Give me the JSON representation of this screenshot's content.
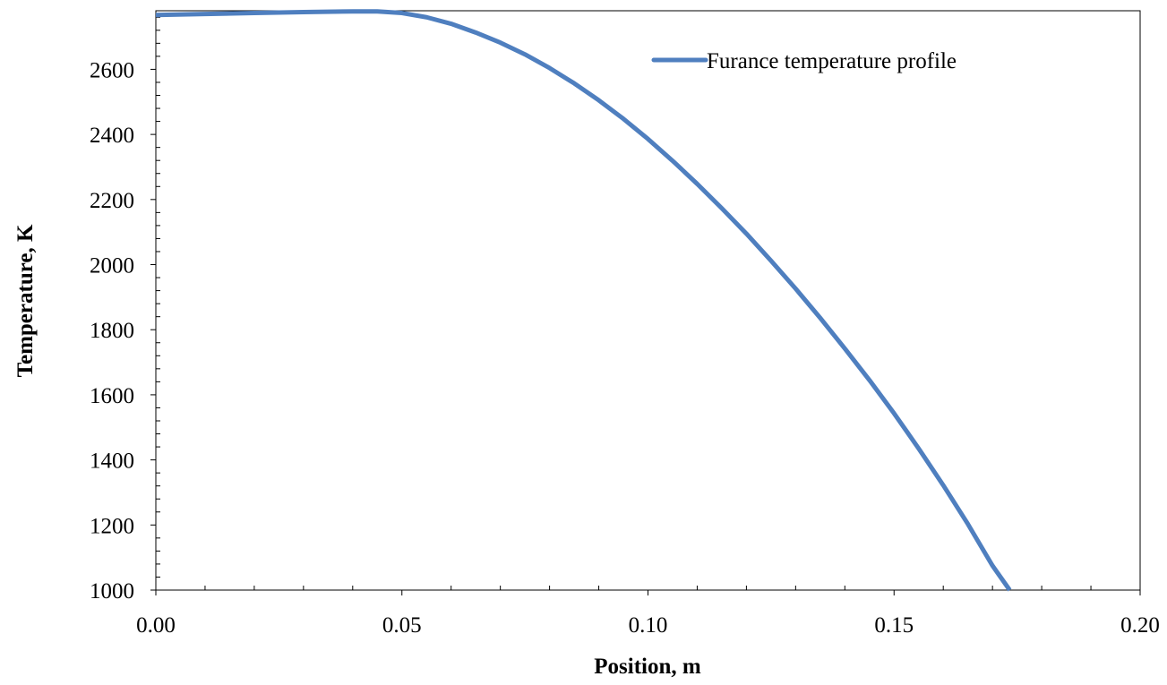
{
  "chart_data": {
    "type": "line",
    "xlabel": "Position, m",
    "ylabel": "Temperature, K",
    "xlim": [
      0.0,
      0.2
    ],
    "ylim": [
      1000,
      2780
    ],
    "xticks": [
      0.0,
      0.05,
      0.1,
      0.15,
      0.2
    ],
    "xtick_labels": [
      "0.00",
      "0.05",
      "0.10",
      "0.15",
      "0.20"
    ],
    "yticks": [
      1000,
      1200,
      1400,
      1600,
      1800,
      2000,
      2200,
      2400,
      2600
    ],
    "ytick_labels": [
      "1000",
      "1200",
      "1400",
      "1600",
      "1800",
      "2000",
      "2200",
      "2400",
      "2600"
    ],
    "grid": false,
    "legend_position": "top-right",
    "series": [
      {
        "name": "Furance temperature profile",
        "color": "#4f7fbf",
        "x": [
          0.0,
          0.01,
          0.02,
          0.03,
          0.04,
          0.045,
          0.05,
          0.055,
          0.06,
          0.065,
          0.07,
          0.075,
          0.08,
          0.085,
          0.09,
          0.095,
          0.1,
          0.105,
          0.11,
          0.115,
          0.12,
          0.125,
          0.13,
          0.135,
          0.14,
          0.145,
          0.15,
          0.155,
          0.16,
          0.165,
          0.17,
          0.1735
        ],
        "y": [
          2767,
          2770,
          2773,
          2776,
          2778,
          2778,
          2773,
          2760,
          2740,
          2713,
          2682,
          2646,
          2604,
          2557,
          2505,
          2448,
          2386,
          2319,
          2248,
          2173,
          2095,
          2012,
          1926,
          1836,
          1742,
          1645,
          1543,
          1435,
          1322,
          1203,
          1075,
          1000
        ]
      }
    ]
  }
}
